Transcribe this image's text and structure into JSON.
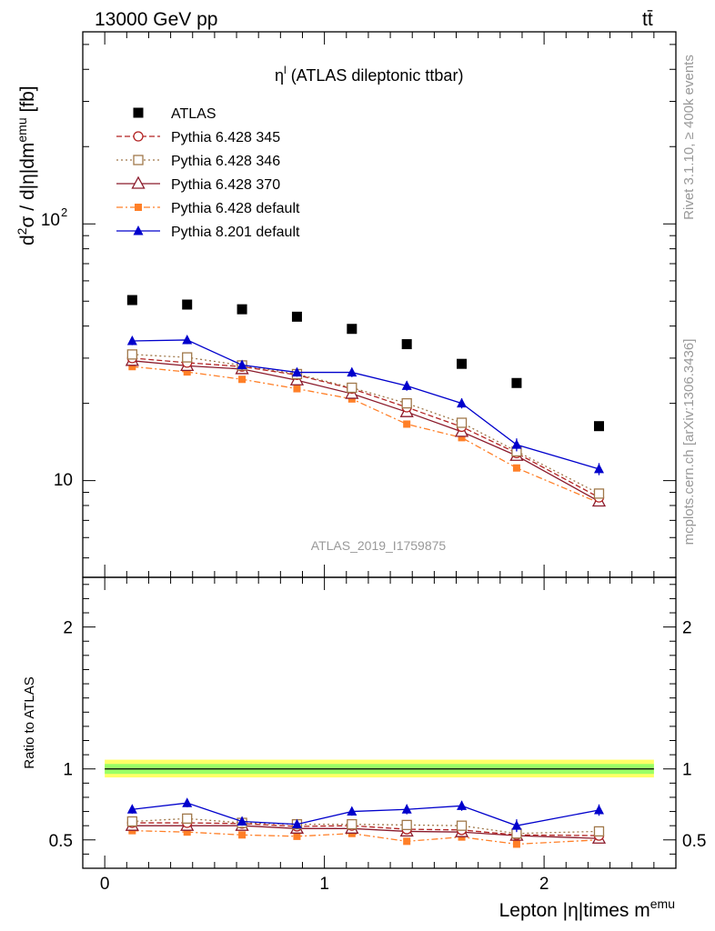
{
  "header": {
    "energy_label": "13000 GeV pp",
    "process_label": "tt̄"
  },
  "side_labels": {
    "rivet": "Rivet 3.1.10, ≥ 400k events",
    "mcplots": "mcplots.cern.ch [arXiv:1306.3436]"
  },
  "colors": {
    "ATLAS": "#000000",
    "Pythia 6.428 345": "#b22222",
    "Pythia 6.428 346": "#a0784a",
    "Pythia 6.428 370": "#8b1a2b",
    "Pythia 6.428 default": "#ff7f27",
    "Pythia 8.201 default": "#0000cc",
    "band_outer": "#ffff66",
    "band_inner": "#99ff66"
  },
  "chart_data": [
    {
      "type": "scatter",
      "panel": "main",
      "title_base": "η",
      "title_sup": "l",
      "title_rest": " (ATLAS dileptonic ttbar)",
      "ylabel": "d²σ / d|η|dm^emu [fb]",
      "ylabel_parts": {
        "d": "d",
        "sup1": "2",
        "body": "σ / d|η|dm",
        "sup2": "emu",
        "tail": " [fb]"
      },
      "yscale": "log",
      "ylim": [
        4.2,
        560
      ],
      "ytick_labels": {
        "10": "10",
        "100_base": "10",
        "100_exp": "2"
      },
      "xlim": [
        -0.1,
        2.6
      ],
      "watermark": "ATLAS_2019_I1759875",
      "legend_position": "top-left",
      "x": [
        0.125,
        0.375,
        0.625,
        0.875,
        1.125,
        1.375,
        1.625,
        1.875,
        2.25
      ],
      "series": [
        {
          "name": "ATLAS",
          "marker": "square-filled",
          "line": "none",
          "values": [
            50.5,
            48.5,
            46.5,
            43.5,
            39.0,
            34.0,
            28.5,
            24.0,
            16.3
          ]
        },
        {
          "name": "Pythia 6.428 345",
          "marker": "circle-open",
          "line": "dashed",
          "values": [
            30.0,
            28.8,
            27.8,
            25.8,
            22.8,
            19.3,
            16.2,
            12.8,
            8.6
          ]
        },
        {
          "name": "Pythia 6.428 346",
          "marker": "square-open",
          "line": "dotted",
          "values": [
            31.0,
            30.2,
            28.1,
            26.0,
            23.0,
            20.0,
            16.8,
            13.0,
            8.9
          ]
        },
        {
          "name": "Pythia 6.428 370",
          "marker": "triangle-open",
          "line": "solid",
          "values": [
            29.3,
            28.0,
            27.2,
            24.6,
            21.8,
            18.5,
            15.5,
            12.5,
            8.3
          ]
        },
        {
          "name": "Pythia 6.428 default",
          "marker": "square-small-filled",
          "line": "dashdot",
          "values": [
            27.8,
            26.5,
            24.8,
            22.8,
            20.8,
            16.6,
            14.7,
            11.2,
            8.2
          ]
        },
        {
          "name": "Pythia 8.201 default",
          "marker": "triangle-filled",
          "line": "solid",
          "values": [
            35.0,
            35.3,
            28.2,
            26.4,
            26.4,
            23.4,
            20.0,
            13.8,
            11.1
          ],
          "errors": [
            1.3,
            1.3,
            1.1,
            1.0,
            1.1,
            1.0,
            0.9,
            0.8,
            0.6
          ]
        }
      ]
    },
    {
      "type": "scatter",
      "panel": "ratio",
      "ylabel": "Ratio to ATLAS",
      "ylim": [
        0.3,
        2.35
      ],
      "yticks": [
        0.5,
        1,
        2
      ],
      "ytick_labels": [
        "0.5",
        "1",
        "2"
      ],
      "xlim": [
        -0.1,
        2.6
      ],
      "xticks": [
        0,
        1,
        2
      ],
      "xtick_labels": [
        "0",
        "1",
        "2"
      ],
      "xlabel_parts": {
        "body": "Lepton |η|times m",
        "sup": "emu"
      },
      "band": {
        "outer": [
          0.94,
          1.065
        ],
        "inner": [
          0.965,
          1.035
        ]
      },
      "x": [
        0.125,
        0.375,
        0.625,
        0.875,
        1.125,
        1.375,
        1.625,
        1.875,
        2.25
      ],
      "series": [
        {
          "name": "Pythia 6.428 345",
          "values": [
            0.62,
            0.62,
            0.615,
            0.595,
            0.6,
            0.575,
            0.57,
            0.535,
            0.53
          ]
        },
        {
          "name": "Pythia 6.428 346",
          "values": [
            0.63,
            0.65,
            0.62,
            0.61,
            0.61,
            0.605,
            0.6,
            0.545,
            0.56
          ]
        },
        {
          "name": "Pythia 6.428 370",
          "values": [
            0.6,
            0.6,
            0.6,
            0.58,
            0.58,
            0.56,
            0.555,
            0.53,
            0.51
          ]
        },
        {
          "name": "Pythia 6.428 default",
          "values": [
            0.565,
            0.555,
            0.535,
            0.525,
            0.545,
            0.49,
            0.52,
            0.47,
            0.5
          ]
        },
        {
          "name": "Pythia 8.201 default",
          "values": [
            0.715,
            0.76,
            0.63,
            0.61,
            0.7,
            0.715,
            0.74,
            0.6,
            0.71
          ],
          "errors": [
            0.03,
            0.03,
            0.03,
            0.03,
            0.03,
            0.035,
            0.035,
            0.045,
            0.04
          ]
        }
      ]
    }
  ]
}
